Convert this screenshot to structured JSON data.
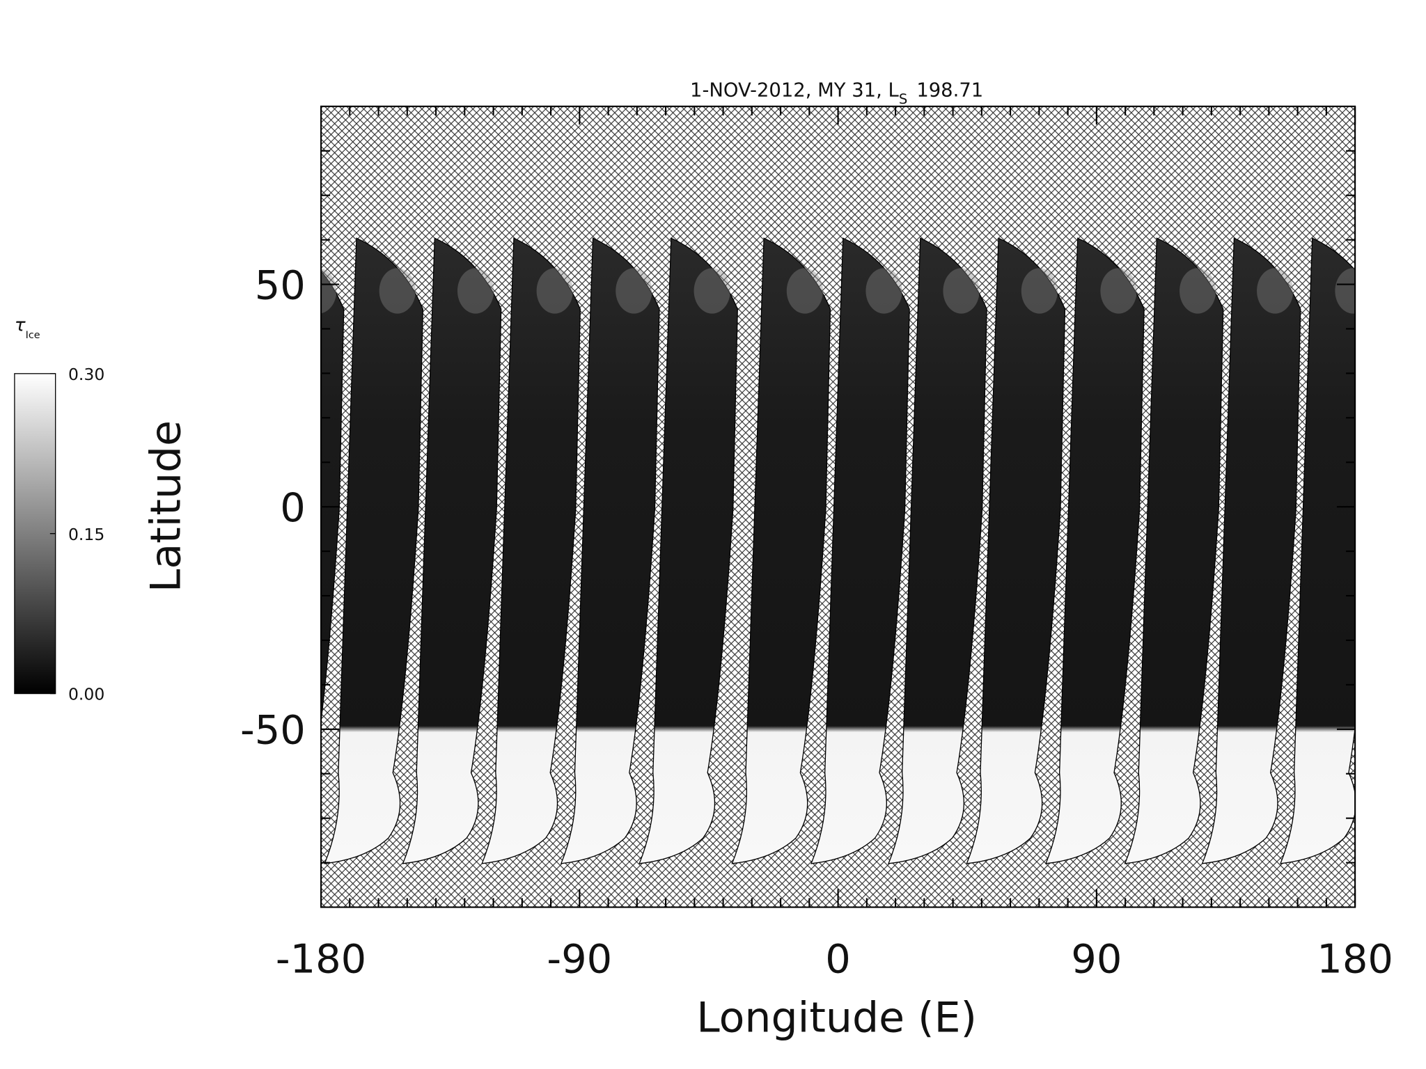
{
  "chart_data": {
    "type": "map",
    "title": {
      "text": "1-NOV-2012, MY 31,  L",
      "subscript": "S",
      "value": 198.71
    },
    "xlabel": "Longitude (E)",
    "ylabel": "Latitude",
    "xlim": [
      -180,
      180
    ],
    "ylim": [
      -90,
      90
    ],
    "xticks": [
      -180,
      -90,
      0,
      90,
      180
    ],
    "yticks": [
      -50,
      0,
      50
    ],
    "xminorticks": [
      -170,
      -160,
      -150,
      -140,
      -130,
      -120,
      -110,
      -100,
      -80,
      -70,
      -60,
      -50,
      -40,
      -30,
      -20,
      -10,
      10,
      20,
      30,
      40,
      50,
      60,
      70,
      80,
      100,
      110,
      120,
      130,
      140,
      150,
      160,
      170
    ],
    "yminorticks": [
      -80,
      -70,
      -60,
      -40,
      -30,
      -20,
      -10,
      10,
      20,
      30,
      40,
      60,
      70,
      80
    ],
    "colorbar": {
      "label": "τ",
      "subscript": "Ice",
      "range": [
        0,
        0.3
      ],
      "colors": [
        "#000000",
        "#ffffff"
      ],
      "ticks": [
        {
          "value": 0,
          "label": "0.00"
        },
        {
          "value": 0.15,
          "label": "0.15"
        },
        {
          "value": 0.3,
          "label": "0.30"
        }
      ]
    }
  }
}
